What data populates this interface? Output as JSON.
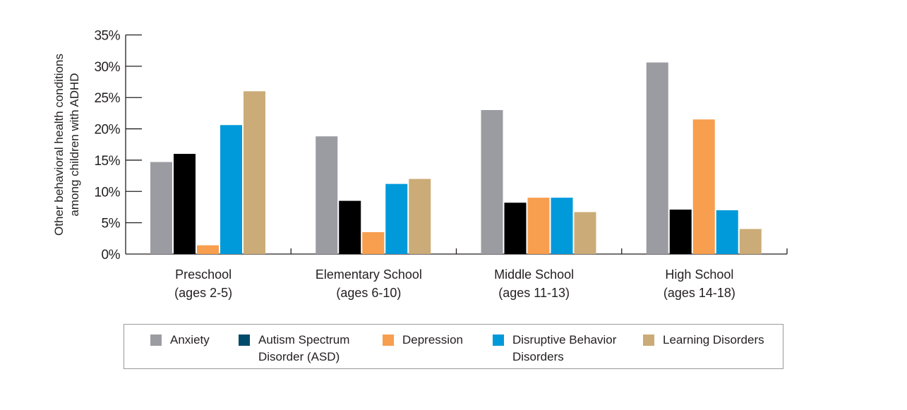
{
  "chart_data": {
    "type": "bar",
    "ylabel": "Other behavioral health conditions\namong children with ADHD",
    "xlabel": "",
    "ylim": [
      0,
      35
    ],
    "yticks": [
      "0%",
      "5%",
      "10%",
      "15%",
      "20%",
      "25%",
      "30%",
      "35%"
    ],
    "categories": [
      "Preschool\n(ages 2-5)",
      "Elementary School\n(ages 6-10)",
      "Middle School\n(ages 11-13)",
      "High School\n(ages 14-18)"
    ],
    "legend_position": "bottom",
    "grid": false,
    "series": [
      {
        "name": "Anxiety",
        "color": "#9b9ca1",
        "values": [
          14.7,
          18.8,
          23.0,
          30.6
        ]
      },
      {
        "name": "Autism Spectrum\nDisorder (ASD)",
        "color": "#000000",
        "legend_color": "#004b6b",
        "values": [
          16.0,
          8.5,
          8.2,
          7.1
        ]
      },
      {
        "name": "Depression",
        "color": "#f79e4f",
        "values": [
          1.4,
          3.5,
          9.0,
          21.5
        ]
      },
      {
        "name": "Disruptive Behavior\nDisorders",
        "color": "#009ada",
        "values": [
          20.6,
          11.2,
          9.0,
          7.0
        ]
      },
      {
        "name": "Learning Disorders",
        "color": "#cbab77",
        "values": [
          26.0,
          12.0,
          6.7,
          4.0
        ]
      }
    ]
  }
}
